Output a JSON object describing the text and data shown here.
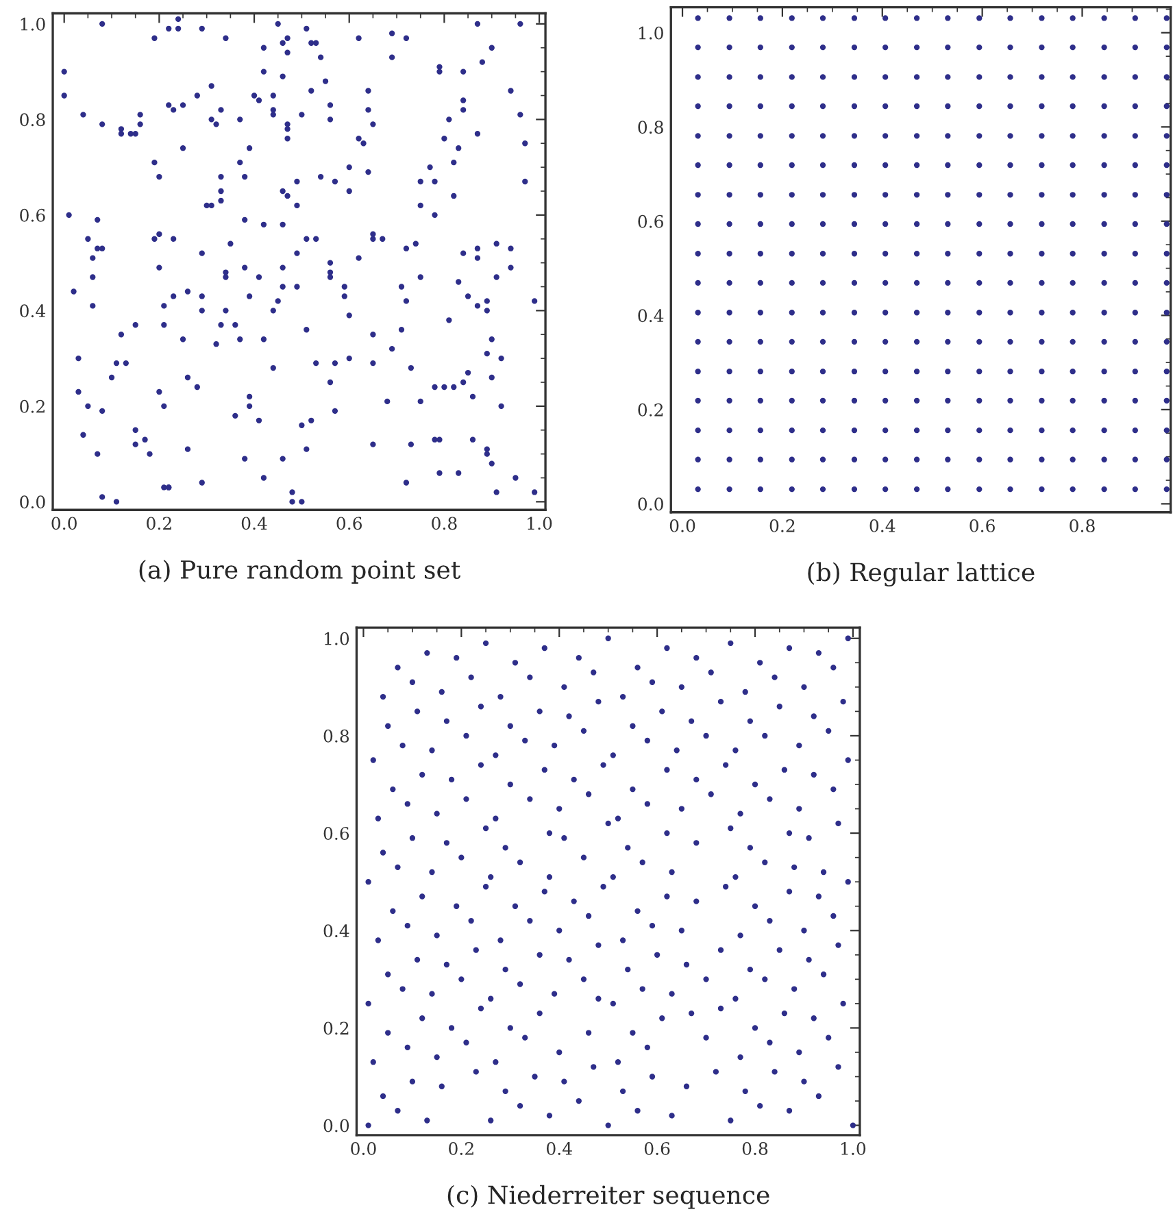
{
  "chart_data": [
    {
      "type": "scatter",
      "xlabel": "(a) Pure random point set",
      "color": "#2e2e8a",
      "marker": "circle",
      "xlim": [
        -0.024,
        1.013
      ],
      "ylim": [
        -0.017,
        1.022
      ],
      "xticks": [
        {
          "value": 0,
          "label": "0.0"
        },
        {
          "value": 0.05,
          "label": null
        },
        {
          "value": 0.1,
          "label": null
        },
        {
          "value": 0.15,
          "label": null
        },
        {
          "value": 0.2,
          "label": "0.2"
        },
        {
          "value": 0.25,
          "label": null
        },
        {
          "value": 0.3,
          "label": null
        },
        {
          "value": 0.35,
          "label": null
        },
        {
          "value": 0.4,
          "label": "0.4"
        },
        {
          "value": 0.45,
          "label": null
        },
        {
          "value": 0.5,
          "label": null
        },
        {
          "value": 0.55,
          "label": null
        },
        {
          "value": 0.6,
          "label": "0.6"
        },
        {
          "value": 0.65,
          "label": null
        },
        {
          "value": 0.7,
          "label": null
        },
        {
          "value": 0.75,
          "label": null
        },
        {
          "value": 0.8,
          "label": "0.8"
        },
        {
          "value": 0.85,
          "label": null
        },
        {
          "value": 0.9,
          "label": null
        },
        {
          "value": 0.95,
          "label": null
        },
        {
          "value": 1,
          "label": "1.0"
        }
      ],
      "yticks": [
        {
          "value": 0,
          "label": "0.0"
        },
        {
          "value": 0.05,
          "label": null
        },
        {
          "value": 0.1,
          "label": null
        },
        {
          "value": 0.15,
          "label": null
        },
        {
          "value": 0.2,
          "label": "0.2"
        },
        {
          "value": 0.25,
          "label": null
        },
        {
          "value": 0.3,
          "label": null
        },
        {
          "value": 0.35,
          "label": null
        },
        {
          "value": 0.4,
          "label": "0.4"
        },
        {
          "value": 0.45,
          "label": null
        },
        {
          "value": 0.5,
          "label": null
        },
        {
          "value": 0.55,
          "label": null
        },
        {
          "value": 0.6,
          "label": "0.6"
        },
        {
          "value": 0.65,
          "label": null
        },
        {
          "value": 0.7,
          "label": null
        },
        {
          "value": 0.75,
          "label": null
        },
        {
          "value": 0.8,
          "label": "0.8"
        },
        {
          "value": 0.85,
          "label": null
        },
        {
          "value": 0.9,
          "label": null
        },
        {
          "value": 0.95,
          "label": null
        },
        {
          "value": 1,
          "label": "1.0"
        }
      ],
      "x": [
        0.0,
        0.0,
        0.01,
        0.04,
        0.05,
        0.07,
        0.06,
        0.07,
        0.08,
        0.08,
        0.08,
        0.12,
        0.12,
        0.14,
        0.15,
        0.16,
        0.16,
        0.19,
        0.19,
        0.2,
        0.19,
        0.2,
        0.22,
        0.22,
        0.23,
        0.23,
        0.24,
        0.24,
        0.25,
        0.25,
        0.28,
        0.29,
        0.29,
        0.31,
        0.31,
        0.3,
        0.31,
        0.32,
        0.33,
        0.33,
        0.33,
        0.33,
        0.34,
        0.35,
        0.37,
        0.37,
        0.38,
        0.38,
        0.39,
        0.4,
        0.41,
        0.42,
        0.42,
        0.42,
        0.44,
        0.44,
        0.44,
        0.45,
        0.46,
        0.46,
        0.46,
        0.46,
        0.47,
        0.47,
        0.47,
        0.47,
        0.47,
        0.47,
        0.49,
        0.49,
        0.49,
        0.5,
        0.51,
        0.51,
        0.52,
        0.52,
        0.53,
        0.53,
        0.54,
        0.54,
        0.55,
        0.56,
        0.56,
        0.57,
        0.6,
        0.6,
        0.62,
        0.62,
        0.63,
        0.62,
        0.64,
        0.64,
        0.64,
        0.65,
        0.65,
        0.65,
        0.67,
        0.69,
        0.69,
        0.72,
        0.72,
        0.74,
        0.75,
        0.75,
        0.77,
        0.78,
        0.78,
        0.79,
        0.79,
        0.8,
        0.81,
        0.82,
        0.83,
        0.82,
        0.84,
        0.84,
        0.84,
        0.84,
        0.87,
        0.87,
        0.87,
        0.87,
        0.88,
        0.9,
        0.91,
        0.94,
        0.94,
        0.96,
        0.96,
        0.97,
        0.97,
        0.02,
        0.06,
        0.06,
        0.03,
        0.03,
        0.04,
        0.05,
        0.07,
        0.08,
        0.08,
        0.11,
        0.1,
        0.11,
        0.12,
        0.13,
        0.15,
        0.15,
        0.15,
        0.17,
        0.18,
        0.2,
        0.2,
        0.21,
        0.21,
        0.21,
        0.21,
        0.22,
        0.22,
        0.23,
        0.25,
        0.26,
        0.26,
        0.26,
        0.28,
        0.29,
        0.29,
        0.29,
        0.32,
        0.33,
        0.34,
        0.34,
        0.34,
        0.36,
        0.36,
        0.37,
        0.38,
        0.38,
        0.39,
        0.39,
        0.39,
        0.41,
        0.41,
        0.42,
        0.42,
        0.44,
        0.44,
        0.45,
        0.46,
        0.46,
        0.46,
        0.48,
        0.48,
        0.49,
        0.5,
        0.5,
        0.51,
        0.51,
        0.52,
        0.53,
        0.56,
        0.56,
        0.56,
        0.56,
        0.57,
        0.57,
        0.59,
        0.59,
        0.6,
        0.6,
        0.65,
        0.65,
        0.65,
        0.68,
        0.69,
        0.71,
        0.71,
        0.72,
        0.72,
        0.73,
        0.73,
        0.75,
        0.75,
        0.78,
        0.78,
        0.79,
        0.79,
        0.8,
        0.81,
        0.82,
        0.83,
        0.83,
        0.84,
        0.85,
        0.85,
        0.86,
        0.86,
        0.87,
        0.89,
        0.89,
        0.89,
        0.89,
        0.89,
        0.9,
        0.9,
        0.9,
        0.91,
        0.91,
        0.92,
        0.92,
        0.94,
        0.95,
        0.99,
        0.99
      ],
      "values": [
        0.9,
        0.85,
        0.6,
        0.81,
        0.55,
        0.53,
        0.51,
        0.59,
        0.53,
        0.79,
        1.0,
        0.78,
        0.77,
        0.77,
        0.77,
        0.79,
        0.81,
        0.97,
        0.71,
        0.68,
        0.55,
        0.56,
        0.99,
        0.83,
        0.55,
        0.82,
        1.01,
        0.99,
        0.83,
        0.74,
        0.85,
        0.52,
        0.99,
        0.87,
        0.8,
        0.62,
        0.62,
        0.79,
        0.68,
        0.65,
        0.82,
        0.63,
        0.97,
        0.54,
        0.8,
        0.71,
        0.68,
        0.59,
        0.74,
        0.85,
        0.84,
        0.58,
        0.95,
        0.9,
        0.81,
        0.82,
        0.85,
        1.0,
        0.96,
        0.65,
        0.89,
        0.58,
        0.64,
        0.78,
        0.97,
        0.79,
        0.94,
        0.76,
        0.52,
        0.67,
        0.62,
        0.81,
        0.55,
        0.99,
        0.86,
        0.96,
        0.55,
        0.96,
        0.93,
        0.68,
        0.88,
        0.83,
        0.8,
        0.67,
        0.65,
        0.7,
        0.97,
        0.76,
        0.75,
        0.51,
        0.69,
        0.82,
        0.86,
        0.56,
        0.79,
        0.55,
        0.55,
        0.98,
        0.93,
        0.97,
        0.53,
        0.54,
        0.67,
        0.62,
        0.7,
        0.6,
        0.67,
        0.91,
        0.9,
        0.76,
        0.8,
        0.71,
        0.74,
        0.64,
        0.84,
        0.9,
        0.52,
        0.82,
        0.53,
        0.51,
        0.77,
        1.0,
        0.92,
        0.95,
        0.54,
        0.86,
        0.53,
        0.81,
        1.0,
        0.75,
        0.67,
        0.44,
        0.47,
        0.41,
        0.3,
        0.23,
        0.14,
        0.2,
        0.1,
        0.01,
        0.19,
        0.0,
        0.26,
        0.29,
        0.35,
        0.29,
        0.37,
        0.15,
        0.12,
        0.13,
        0.1,
        0.49,
        0.23,
        0.03,
        0.37,
        0.41,
        0.2,
        0.03,
        0.03,
        0.43,
        0.34,
        0.44,
        0.26,
        0.11,
        0.24,
        0.4,
        0.43,
        0.04,
        0.33,
        0.37,
        0.48,
        0.47,
        0.4,
        0.37,
        0.18,
        0.34,
        0.49,
        0.09,
        0.43,
        0.2,
        0.22,
        0.17,
        0.47,
        0.34,
        0.05,
        0.4,
        0.28,
        0.42,
        0.45,
        0.49,
        0.09,
        0.02,
        0.0,
        0.45,
        0.16,
        0.0,
        0.36,
        0.11,
        0.17,
        0.29,
        0.48,
        0.5,
        0.47,
        0.25,
        0.29,
        0.19,
        0.45,
        0.43,
        0.3,
        0.39,
        0.35,
        0.29,
        0.12,
        0.21,
        0.32,
        0.45,
        0.36,
        0.42,
        0.04,
        0.28,
        0.12,
        0.47,
        0.21,
        0.13,
        0.24,
        0.06,
        0.13,
        0.24,
        0.38,
        0.24,
        0.46,
        0.06,
        0.25,
        0.43,
        0.27,
        0.13,
        0.22,
        0.41,
        0.4,
        0.1,
        0.11,
        0.42,
        0.31,
        0.34,
        0.26,
        0.08,
        0.47,
        0.02,
        0.3,
        0.2,
        0.49,
        0.05,
        0.42,
        0.02
      ]
    },
    {
      "type": "scatter",
      "xlabel": "(b) Regular lattice",
      "color": "#2e2e8a",
      "marker": "circle",
      "xlim": [
        -0.023,
        0.977
      ],
      "ylim": [
        -0.018,
        1.054
      ],
      "xticks": [
        {
          "value": 0,
          "label": "0.0"
        },
        {
          "value": 0.05,
          "label": null
        },
        {
          "value": 0.1,
          "label": null
        },
        {
          "value": 0.15,
          "label": null
        },
        {
          "value": 0.2,
          "label": "0.2"
        },
        {
          "value": 0.25,
          "label": null
        },
        {
          "value": 0.3,
          "label": null
        },
        {
          "value": 0.35,
          "label": null
        },
        {
          "value": 0.4,
          "label": "0.4"
        },
        {
          "value": 0.45,
          "label": null
        },
        {
          "value": 0.5,
          "label": null
        },
        {
          "value": 0.55,
          "label": null
        },
        {
          "value": 0.6,
          "label": "0.6"
        },
        {
          "value": 0.65,
          "label": null
        },
        {
          "value": 0.7,
          "label": null
        },
        {
          "value": 0.75,
          "label": null
        },
        {
          "value": 0.8,
          "label": "0.8"
        },
        {
          "value": 0.85,
          "label": null
        },
        {
          "value": 0.9,
          "label": null
        },
        {
          "value": 0.95,
          "label": null
        }
      ],
      "yticks": [
        {
          "value": 0,
          "label": "0.0"
        },
        {
          "value": 0.05,
          "label": null
        },
        {
          "value": 0.1,
          "label": null
        },
        {
          "value": 0.15,
          "label": null
        },
        {
          "value": 0.2,
          "label": "0.2"
        },
        {
          "value": 0.25,
          "label": null
        },
        {
          "value": 0.3,
          "label": null
        },
        {
          "value": 0.35,
          "label": null
        },
        {
          "value": 0.4,
          "label": "0.4"
        },
        {
          "value": 0.45,
          "label": null
        },
        {
          "value": 0.5,
          "label": null
        },
        {
          "value": 0.55,
          "label": null
        },
        {
          "value": 0.6,
          "label": "0.6"
        },
        {
          "value": 0.65,
          "label": null
        },
        {
          "value": 0.7,
          "label": null
        },
        {
          "value": 0.75,
          "label": null
        },
        {
          "value": 0.8,
          "label": "0.8"
        },
        {
          "value": 0.85,
          "label": null
        },
        {
          "value": 0.9,
          "label": null
        },
        {
          "value": 0.95,
          "label": null
        },
        {
          "value": 1,
          "label": "1.0"
        },
        {
          "value": 1.05,
          "label": null
        }
      ],
      "x": [
        0.031,
        0.094,
        0.156,
        0.219,
        0.281,
        0.344,
        0.406,
        0.469,
        0.531,
        0.594,
        0.656,
        0.719,
        0.781,
        0.844,
        0.906,
        0.969,
        0.031,
        0.094,
        0.156,
        0.219,
        0.281,
        0.344,
        0.406,
        0.469,
        0.531,
        0.594,
        0.656,
        0.719,
        0.781,
        0.844,
        0.906,
        0.969,
        0.031,
        0.094,
        0.156,
        0.219,
        0.281,
        0.344,
        0.406,
        0.469,
        0.531,
        0.594,
        0.656,
        0.719,
        0.781,
        0.844,
        0.906,
        0.969,
        0.031,
        0.094,
        0.156,
        0.219,
        0.281,
        0.344,
        0.406,
        0.469,
        0.531,
        0.594,
        0.656,
        0.719,
        0.781,
        0.844,
        0.906,
        0.969,
        0.031,
        0.094,
        0.156,
        0.219,
        0.281,
        0.344,
        0.406,
        0.469,
        0.531,
        0.594,
        0.656,
        0.719,
        0.781,
        0.844,
        0.906,
        0.969,
        0.031,
        0.094,
        0.156,
        0.219,
        0.281,
        0.344,
        0.406,
        0.469,
        0.531,
        0.594,
        0.656,
        0.719,
        0.781,
        0.844,
        0.906,
        0.969,
        0.031,
        0.094,
        0.156,
        0.219,
        0.281,
        0.344,
        0.406,
        0.469,
        0.531,
        0.594,
        0.656,
        0.719,
        0.781,
        0.844,
        0.906,
        0.969,
        0.031,
        0.094,
        0.156,
        0.219,
        0.281,
        0.344,
        0.406,
        0.469,
        0.531,
        0.594,
        0.656,
        0.719,
        0.781,
        0.844,
        0.906,
        0.969,
        0.031,
        0.094,
        0.156,
        0.219,
        0.281,
        0.344,
        0.406,
        0.469,
        0.531,
        0.594,
        0.656,
        0.719,
        0.781,
        0.844,
        0.906,
        0.969,
        0.031,
        0.094,
        0.156,
        0.219,
        0.281,
        0.344,
        0.406,
        0.469,
        0.531,
        0.594,
        0.656,
        0.719,
        0.781,
        0.844,
        0.906,
        0.969,
        0.031,
        0.094,
        0.156,
        0.219,
        0.281,
        0.344,
        0.406,
        0.469,
        0.531,
        0.594,
        0.656,
        0.719,
        0.781,
        0.844,
        0.906,
        0.969,
        0.031,
        0.094,
        0.156,
        0.219,
        0.281,
        0.344,
        0.406,
        0.469,
        0.531,
        0.594,
        0.656,
        0.719,
        0.781,
        0.844,
        0.906,
        0.969,
        0.031,
        0.094,
        0.156,
        0.219,
        0.281,
        0.344,
        0.406,
        0.469,
        0.531,
        0.594,
        0.656,
        0.719,
        0.781,
        0.844,
        0.906,
        0.969,
        0.031,
        0.094,
        0.156,
        0.219,
        0.281,
        0.344,
        0.406,
        0.469,
        0.531,
        0.594,
        0.656,
        0.719,
        0.781,
        0.844,
        0.906,
        0.969,
        0.031,
        0.094,
        0.156,
        0.219,
        0.281,
        0.344,
        0.406,
        0.469,
        0.531,
        0.594,
        0.656,
        0.719,
        0.781,
        0.844,
        0.906,
        0.969,
        0.031,
        0.094,
        0.156,
        0.219,
        0.281,
        0.344,
        0.406,
        0.469,
        0.531,
        0.594,
        0.656,
        0.719,
        0.781,
        0.844,
        0.906,
        0.969,
        0.031,
        0.094,
        0.156,
        0.219,
        0.281,
        0.344,
        0.406,
        0.469,
        0.531,
        0.594,
        0.656,
        0.719,
        0.781,
        0.844,
        0.906,
        0.969
      ],
      "values": [
        0.031,
        0.031,
        0.031,
        0.031,
        0.031,
        0.031,
        0.031,
        0.031,
        0.031,
        0.031,
        0.031,
        0.031,
        0.031,
        0.031,
        0.031,
        0.031,
        0.094,
        0.094,
        0.094,
        0.094,
        0.094,
        0.094,
        0.094,
        0.094,
        0.094,
        0.094,
        0.094,
        0.094,
        0.094,
        0.094,
        0.094,
        0.094,
        0.156,
        0.156,
        0.156,
        0.156,
        0.156,
        0.156,
        0.156,
        0.156,
        0.156,
        0.156,
        0.156,
        0.156,
        0.156,
        0.156,
        0.156,
        0.156,
        0.219,
        0.219,
        0.219,
        0.219,
        0.219,
        0.219,
        0.219,
        0.219,
        0.219,
        0.219,
        0.219,
        0.219,
        0.219,
        0.219,
        0.219,
        0.219,
        0.281,
        0.281,
        0.281,
        0.281,
        0.281,
        0.281,
        0.281,
        0.281,
        0.281,
        0.281,
        0.281,
        0.281,
        0.281,
        0.281,
        0.281,
        0.281,
        0.344,
        0.344,
        0.344,
        0.344,
        0.344,
        0.344,
        0.344,
        0.344,
        0.344,
        0.344,
        0.344,
        0.344,
        0.344,
        0.344,
        0.344,
        0.344,
        0.406,
        0.406,
        0.406,
        0.406,
        0.406,
        0.406,
        0.406,
        0.406,
        0.406,
        0.406,
        0.406,
        0.406,
        0.406,
        0.406,
        0.406,
        0.406,
        0.469,
        0.469,
        0.469,
        0.469,
        0.469,
        0.469,
        0.469,
        0.469,
        0.469,
        0.469,
        0.469,
        0.469,
        0.469,
        0.469,
        0.469,
        0.469,
        0.531,
        0.531,
        0.531,
        0.531,
        0.531,
        0.531,
        0.531,
        0.531,
        0.531,
        0.531,
        0.531,
        0.531,
        0.531,
        0.531,
        0.531,
        0.531,
        0.594,
        0.594,
        0.594,
        0.594,
        0.594,
        0.594,
        0.594,
        0.594,
        0.594,
        0.594,
        0.594,
        0.594,
        0.594,
        0.594,
        0.594,
        0.594,
        0.656,
        0.656,
        0.656,
        0.656,
        0.656,
        0.656,
        0.656,
        0.656,
        0.656,
        0.656,
        0.656,
        0.656,
        0.656,
        0.656,
        0.656,
        0.656,
        0.719,
        0.719,
        0.719,
        0.719,
        0.719,
        0.719,
        0.719,
        0.719,
        0.719,
        0.719,
        0.719,
        0.719,
        0.719,
        0.719,
        0.719,
        0.719,
        0.781,
        0.781,
        0.781,
        0.781,
        0.781,
        0.781,
        0.781,
        0.781,
        0.781,
        0.781,
        0.781,
        0.781,
        0.781,
        0.781,
        0.781,
        0.781,
        0.844,
        0.844,
        0.844,
        0.844,
        0.844,
        0.844,
        0.844,
        0.844,
        0.844,
        0.844,
        0.844,
        0.844,
        0.844,
        0.844,
        0.844,
        0.844,
        0.906,
        0.906,
        0.906,
        0.906,
        0.906,
        0.906,
        0.906,
        0.906,
        0.906,
        0.906,
        0.906,
        0.906,
        0.906,
        0.906,
        0.906,
        0.906,
        0.969,
        0.969,
        0.969,
        0.969,
        0.969,
        0.969,
        0.969,
        0.969,
        0.969,
        0.969,
        0.969,
        0.969,
        0.969,
        0.969,
        0.969,
        0.969,
        1.031,
        1.031,
        1.031,
        1.031,
        1.031,
        1.031,
        1.031,
        1.031,
        1.031,
        1.031,
        1.031,
        1.031,
        1.031,
        1.031,
        1.031,
        1.031
      ]
    },
    {
      "type": "scatter",
      "xlabel": "(c) Niederreiter sequence",
      "color": "#2e2e8a",
      "marker": "circle",
      "xlim": [
        -0.014,
        1.014
      ],
      "ylim": [
        -0.02,
        1.022
      ],
      "xticks": [
        {
          "value": 0,
          "label": "0.0"
        },
        {
          "value": 0.05,
          "label": null
        },
        {
          "value": 0.1,
          "label": null
        },
        {
          "value": 0.15,
          "label": null
        },
        {
          "value": 0.2,
          "label": "0.2"
        },
        {
          "value": 0.25,
          "label": null
        },
        {
          "value": 0.3,
          "label": null
        },
        {
          "value": 0.35,
          "label": null
        },
        {
          "value": 0.4,
          "label": "0.4"
        },
        {
          "value": 0.45,
          "label": null
        },
        {
          "value": 0.5,
          "label": null
        },
        {
          "value": 0.55,
          "label": null
        },
        {
          "value": 0.6,
          "label": "0.6"
        },
        {
          "value": 0.65,
          "label": null
        },
        {
          "value": 0.7,
          "label": null
        },
        {
          "value": 0.75,
          "label": null
        },
        {
          "value": 0.8,
          "label": "0.8"
        },
        {
          "value": 0.85,
          "label": null
        },
        {
          "value": 0.9,
          "label": null
        },
        {
          "value": 0.95,
          "label": null
        },
        {
          "value": 1,
          "label": "1.0"
        }
      ],
      "yticks": [
        {
          "value": 0,
          "label": "0.0"
        },
        {
          "value": 0.05,
          "label": null
        },
        {
          "value": 0.1,
          "label": null
        },
        {
          "value": 0.15,
          "label": null
        },
        {
          "value": 0.2,
          "label": "0.2"
        },
        {
          "value": 0.25,
          "label": null
        },
        {
          "value": 0.3,
          "label": null
        },
        {
          "value": 0.35,
          "label": null
        },
        {
          "value": 0.4,
          "label": "0.4"
        },
        {
          "value": 0.45,
          "label": null
        },
        {
          "value": 0.5,
          "label": null
        },
        {
          "value": 0.55,
          "label": null
        },
        {
          "value": 0.6,
          "label": "0.6"
        },
        {
          "value": 0.65,
          "label": null
        },
        {
          "value": 0.7,
          "label": null
        },
        {
          "value": 0.75,
          "label": null
        },
        {
          "value": 0.8,
          "label": "0.8"
        },
        {
          "value": 0.85,
          "label": null
        },
        {
          "value": 0.9,
          "label": null
        },
        {
          "value": 0.95,
          "label": null
        },
        {
          "value": 1,
          "label": "1.0"
        }
      ],
      "x": [
        0.99,
        0.5,
        0.25,
        0.75,
        0.13,
        0.37,
        0.62,
        0.87,
        0.93,
        0.44,
        0.68,
        0.07,
        0.19,
        0.31,
        0.56,
        0.81,
        0.96,
        0.47,
        0.71,
        0.22,
        0.1,
        0.34,
        0.59,
        0.84,
        0.9,
        0.41,
        0.65,
        0.16,
        0.78,
        0.04,
        0.28,
        0.53,
        0.98,
        0.48,
        0.73,
        0.24,
        0.85,
        0.61,
        0.36,
        0.11,
        0.42,
        0.92,
        0.17,
        0.67,
        0.55,
        0.79,
        0.05,
        0.3,
        0.95,
        0.45,
        0.21,
        0.7,
        0.82,
        0.58,
        0.33,
        0.08,
        0.39,
        0.64,
        0.89,
        0.14,
        0.27,
        0.51,
        0.76,
        0.49,
        0.24,
        0.74,
        0.02,
        0.99,
        0.86,
        0.62,
        0.37,
        0.12,
        0.43,
        0.92,
        0.68,
        0.18,
        0.55,
        0.8,
        0.06,
        0.3,
        0.21,
        0.71,
        0.46,
        0.96,
        0.34,
        0.58,
        0.83,
        0.09,
        0.89,
        0.4,
        0.65,
        0.15,
        0.27,
        0.52,
        0.77,
        0.03,
        0.5,
        0.97,
        0.75,
        0.25,
        0.87,
        0.62,
        0.38,
        0.1,
        0.41,
        0.91,
        0.68,
        0.17,
        0.54,
        0.79,
        0.04,
        0.29,
        0.45,
        0.82,
        0.57,
        0.32,
        0.2,
        0.07,
        0.63,
        0.94,
        0.14,
        0.38,
        0.88,
        0.01,
        0.26,
        0.76,
        0.51,
        0.49,
        0.99,
        0.74,
        0.25,
        0.01,
        1.0,
        0.5,
        0.26,
        0.75,
        0.13,
        0.38,
        0.63,
        0.87,
        0.07,
        0.56,
        0.81,
        0.32,
        0.04,
        0.44,
        0.93,
        0.53,
        0.29,
        0.78,
        0.16,
        0.41,
        0.66,
        0.9,
        0.1,
        0.59,
        0.84,
        0.35,
        0.23,
        0.97,
        0.47,
        0.72,
        0.02,
        0.27,
        0.52,
        0.77,
        0.15,
        0.4,
        0.89,
        0.09,
        0.58,
        0.83,
        0.33,
        0.21,
        0.95,
        0.7,
        0.46,
        0.05,
        0.3,
        0.55,
        0.8,
        0.18,
        0.92,
        0.67,
        0.12,
        0.61,
        0.86,
        0.36,
        0.24,
        0.48,
        0.51,
        0.73,
        0.01,
        0.26,
        0.76,
        0.98,
        0.14,
        0.39,
        0.63,
        0.88,
        0.08,
        0.57,
        0.82,
        0.32,
        0.2,
        0.7,
        0.94,
        0.45,
        0.05,
        0.29,
        0.54,
        0.79,
        0.17,
        0.42,
        0.66,
        0.91,
        0.11,
        0.6,
        0.85,
        0.36,
        0.23,
        0.73,
        0.97,
        0.48,
        0.03,
        0.28,
        0.53,
        0.77,
        0.15,
        0.4,
        0.65,
        0.59,
        0.9,
        0.09,
        0.34,
        0.83,
        0.46,
        0.22,
        0.06,
        0.31,
        0.56,
        0.8,
        0.19,
        0.43,
        0.68,
        0.93,
        0.96,
        0.12,
        0.37,
        0.62,
        0.87
      ],
      "values": [
        1.0,
        1.0,
        0.99,
        0.99,
        0.97,
        0.98,
        0.98,
        0.98,
        0.97,
        0.96,
        0.96,
        0.94,
        0.96,
        0.95,
        0.94,
        0.95,
        0.94,
        0.93,
        0.93,
        0.92,
        0.91,
        0.92,
        0.91,
        0.92,
        0.9,
        0.9,
        0.9,
        0.89,
        0.89,
        0.88,
        0.88,
        0.88,
        0.87,
        0.87,
        0.87,
        0.86,
        0.86,
        0.85,
        0.85,
        0.85,
        0.84,
        0.84,
        0.83,
        0.83,
        0.82,
        0.83,
        0.82,
        0.82,
        0.81,
        0.81,
        0.8,
        0.8,
        0.8,
        0.79,
        0.79,
        0.78,
        0.78,
        0.77,
        0.78,
        0.77,
        0.76,
        0.76,
        0.77,
        0.74,
        0.74,
        0.74,
        0.75,
        0.75,
        0.73,
        0.73,
        0.73,
        0.72,
        0.71,
        0.72,
        0.71,
        0.71,
        0.69,
        0.7,
        0.69,
        0.7,
        0.67,
        0.68,
        0.68,
        0.69,
        0.67,
        0.66,
        0.67,
        0.66,
        0.65,
        0.65,
        0.65,
        0.64,
        0.63,
        0.63,
        0.64,
        0.63,
        0.62,
        0.62,
        0.61,
        0.61,
        0.6,
        0.6,
        0.6,
        0.59,
        0.59,
        0.59,
        0.58,
        0.58,
        0.57,
        0.57,
        0.56,
        0.57,
        0.55,
        0.54,
        0.54,
        0.54,
        0.55,
        0.53,
        0.52,
        0.52,
        0.52,
        0.51,
        0.53,
        0.5,
        0.51,
        0.51,
        0.51,
        0.49,
        0.5,
        0.49,
        0.49,
        0.0,
        0.0,
        0.0,
        0.01,
        0.01,
        0.01,
        0.02,
        0.02,
        0.03,
        0.03,
        0.03,
        0.04,
        0.04,
        0.06,
        0.05,
        0.06,
        0.07,
        0.07,
        0.07,
        0.08,
        0.09,
        0.08,
        0.09,
        0.09,
        0.1,
        0.11,
        0.1,
        0.11,
        0.12,
        0.12,
        0.11,
        0.13,
        0.13,
        0.13,
        0.14,
        0.14,
        0.15,
        0.15,
        0.16,
        0.16,
        0.17,
        0.18,
        0.17,
        0.18,
        0.18,
        0.19,
        0.19,
        0.2,
        0.19,
        0.2,
        0.2,
        0.22,
        0.23,
        0.22,
        0.22,
        0.23,
        0.23,
        0.24,
        0.26,
        0.25,
        0.24,
        0.25,
        0.26,
        0.26,
        0.25,
        0.27,
        0.27,
        0.27,
        0.28,
        0.28,
        0.28,
        0.3,
        0.29,
        0.3,
        0.3,
        0.31,
        0.3,
        0.31,
        0.32,
        0.32,
        0.32,
        0.33,
        0.34,
        0.33,
        0.34,
        0.34,
        0.35,
        0.36,
        0.35,
        0.36,
        0.36,
        0.37,
        0.37,
        0.38,
        0.38,
        0.38,
        0.39,
        0.39,
        0.4,
        0.4,
        0.41,
        0.4,
        0.41,
        0.42,
        0.42,
        0.43,
        0.42,
        0.44,
        0.45,
        0.44,
        0.45,
        0.45,
        0.46,
        0.46,
        0.47,
        0.43,
        0.47,
        0.48,
        0.47,
        0.48
      ]
    }
  ]
}
